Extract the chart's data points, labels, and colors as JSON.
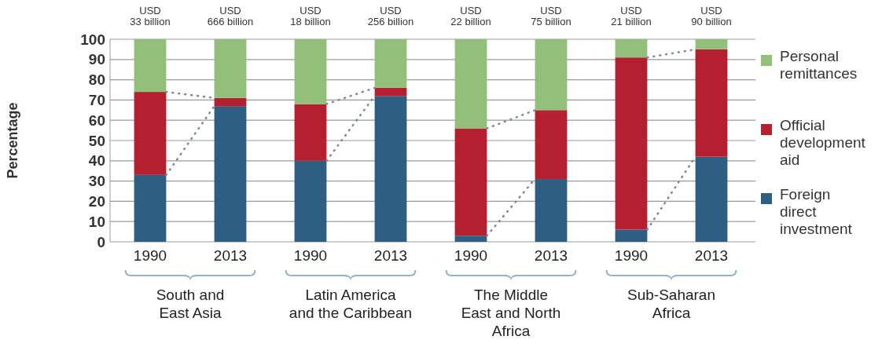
{
  "chart_data": {
    "type": "bar",
    "stacked": true,
    "ylabel": "Percentage",
    "categories": [
      "1990",
      "2013",
      "1990",
      "2013",
      "1990",
      "2013",
      "1990",
      "2013"
    ],
    "series": [
      {
        "name": "Foreign\ndirect\ninvestment",
        "color": "#2e5f83",
        "values": [
          33,
          67,
          40,
          72,
          3,
          31,
          6,
          42
        ]
      },
      {
        "name": "Official\ndevelopment\naid",
        "color": "#b52030",
        "values": [
          41,
          4,
          28,
          4,
          53,
          34,
          85,
          53
        ]
      },
      {
        "name": "Personal\nremittances",
        "color": "#92c07a",
        "values": [
          26,
          29,
          32,
          24,
          44,
          35,
          9,
          5
        ]
      }
    ],
    "annotations": [
      "USD\n33 billion",
      "USD\n666 billion",
      "USD\n18 billion",
      "USD\n256 billion",
      "USD\n22 billion",
      "USD\n75 billion",
      "USD\n21 billion",
      "USD\n90 billion",
      "South and\nEast Asia",
      "Latin America\nand the Caribbean",
      "The Middle\nEast and North\nAfrica",
      "Sub-Saharan\nAfrica"
    ],
    "ylim": [
      0,
      100
    ],
    "yticks": [
      0,
      10,
      20,
      30,
      40,
      50,
      60,
      70,
      80,
      90,
      100
    ],
    "grid": "y",
    "legend": "right"
  }
}
